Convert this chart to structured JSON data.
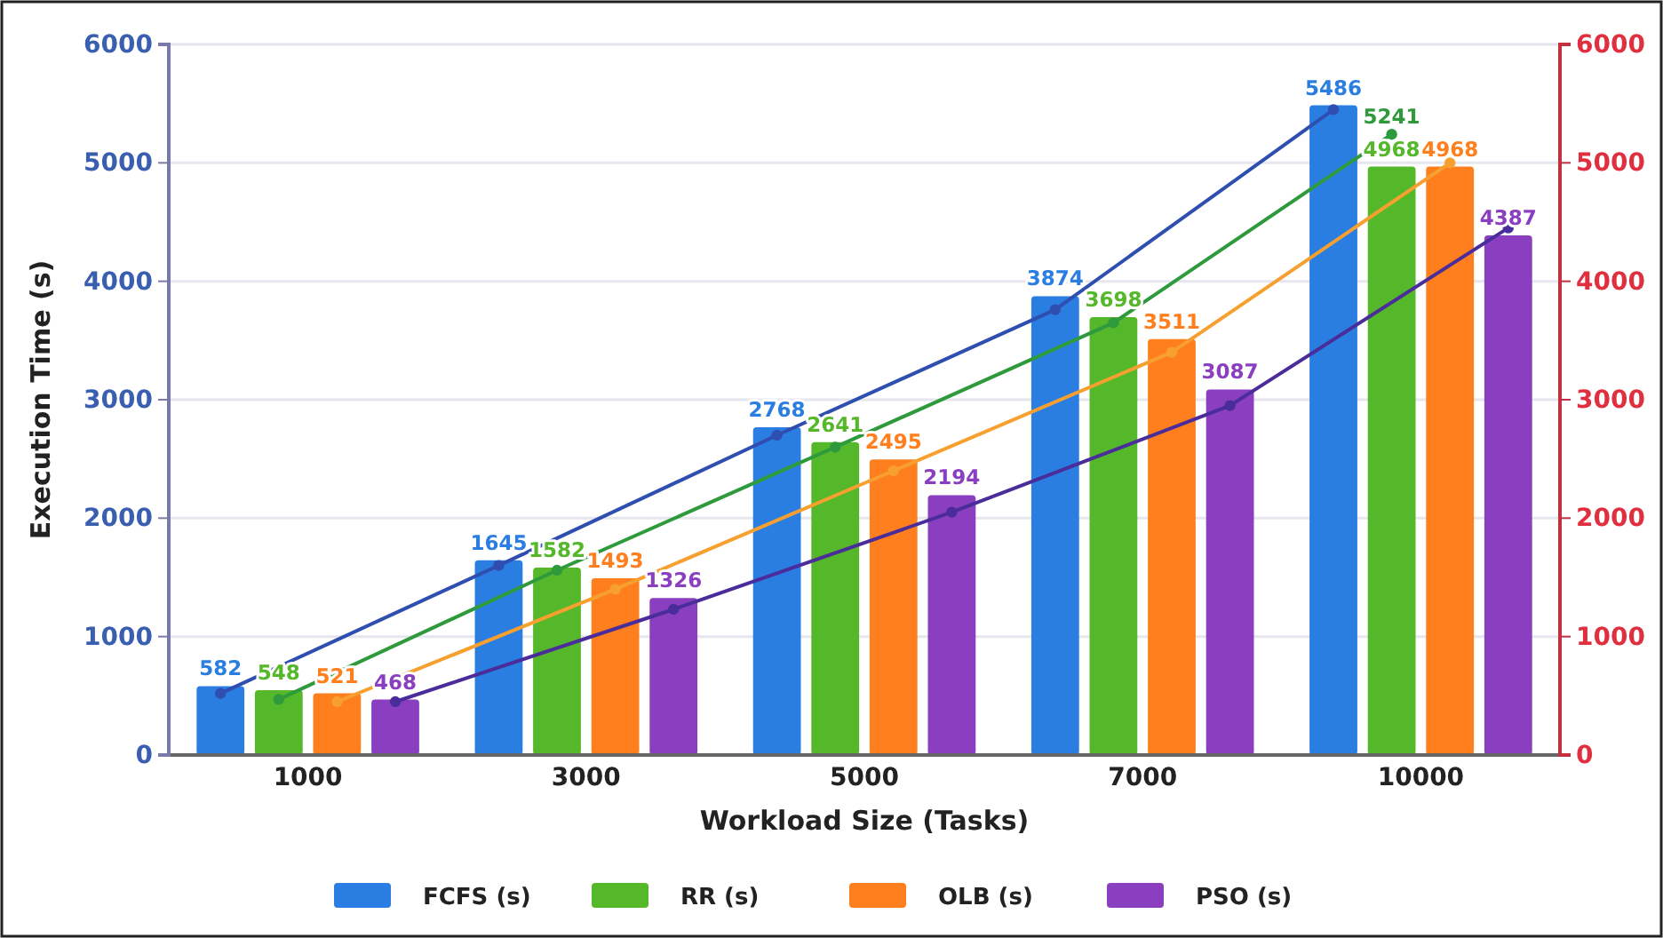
{
  "chart_data": {
    "type": "bar",
    "xlabel": "Workload Size (Tasks)",
    "ylabel": "Execution Time (s)",
    "categories": [
      "1000",
      "3000",
      "5000",
      "7000",
      "10000"
    ],
    "series": [
      {
        "name": "FCFS (s)",
        "color": "#2a7de1",
        "values": [
          582,
          1645,
          2768,
          3874,
          5486
        ],
        "value_labels": [
          "582",
          "1645",
          "2768",
          "3874",
          "5486"
        ]
      },
      {
        "name": "RR (s)",
        "color": "#55b82a",
        "values": [
          548,
          1582,
          2641,
          3698,
          4968
        ],
        "value_labels": [
          "548",
          "1582",
          "2641",
          "3698",
          "4968"
        ]
      },
      {
        "name": "OLB (s)",
        "color": "#ff7f1e",
        "values": [
          521,
          1493,
          2495,
          3511,
          4968
        ],
        "value_labels": [
          "521",
          "1493",
          "2495",
          "3511",
          "4968"
        ]
      },
      {
        "name": "PSO (s)",
        "color": "#8a3fc0",
        "values": [
          468,
          1326,
          2194,
          3087,
          4387
        ],
        "value_labels": [
          "468",
          "1326",
          "2194",
          "3087",
          "4387"
        ]
      },
      {
        "type": "line",
        "color": "#2f4fb0",
        "values": [
          520,
          1600,
          2700,
          3760,
          5450
        ]
      },
      {
        "type": "line",
        "color": "#2e9a3c",
        "values": [
          470,
          1560,
          2600,
          3650,
          5241
        ],
        "value_labels": [
          null,
          null,
          null,
          null,
          "5241"
        ]
      },
      {
        "type": "line",
        "color": "#f7a030",
        "values": [
          450,
          1400,
          2400,
          3400,
          5000
        ]
      },
      {
        "type": "line",
        "color": "#4a2d9a",
        "values": [
          450,
          1230,
          2050,
          2950,
          4450
        ]
      }
    ],
    "ylim": [
      0,
      6000
    ],
    "yticks": [
      0,
      1000,
      2000,
      3000,
      4000,
      5000,
      6000
    ],
    "y2lim": [
      0,
      6000
    ],
    "y2ticks": [
      0,
      1000,
      2000,
      3000,
      4000,
      5000,
      6000
    ],
    "grid": "y",
    "legend": "bottom",
    "marker": "circle",
    "line_style": "solid"
  }
}
